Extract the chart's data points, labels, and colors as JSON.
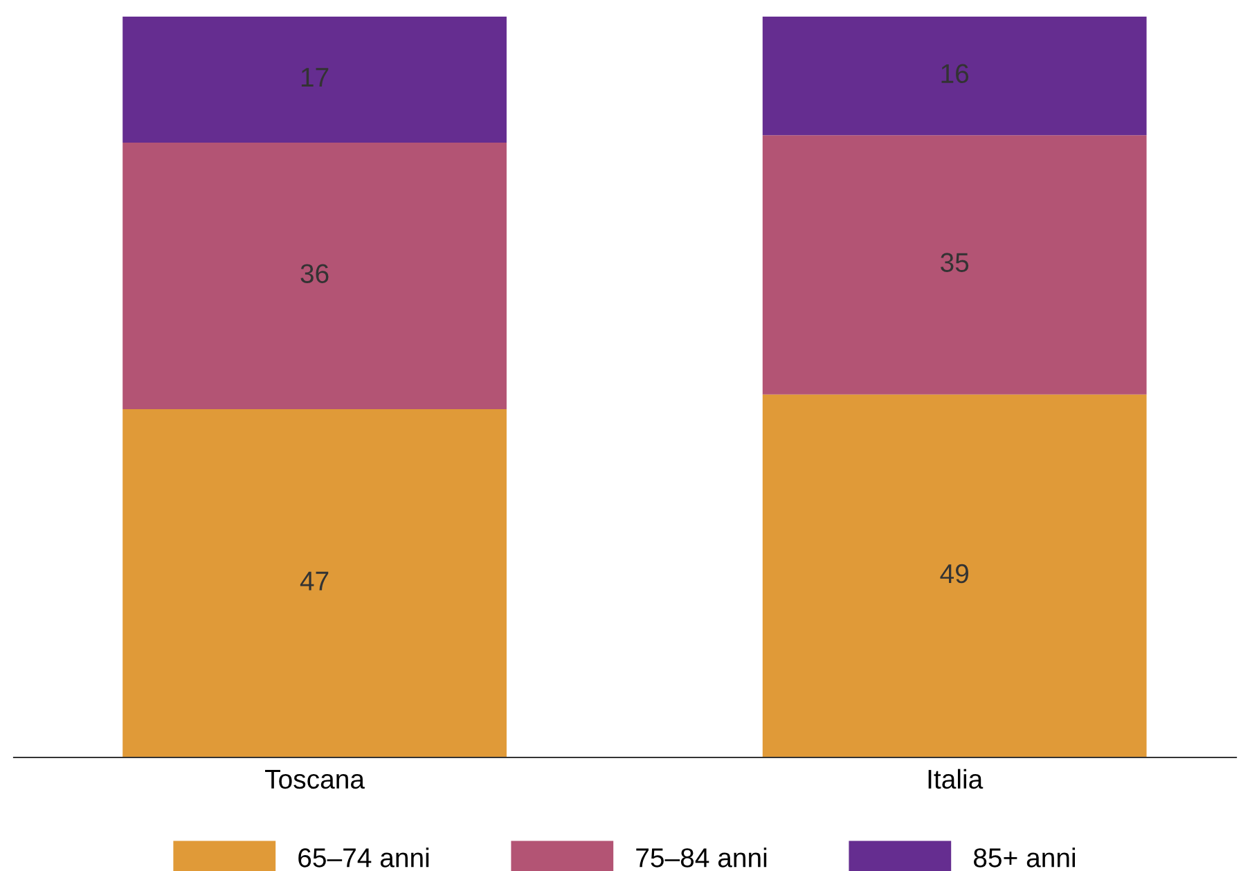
{
  "chart_data": {
    "type": "bar",
    "stacked": true,
    "categories": [
      "Toscana",
      "Italia"
    ],
    "series": [
      {
        "name": "65–74 anni",
        "color": "#e09a38",
        "values": [
          47,
          49
        ]
      },
      {
        "name": "75–84 anni",
        "color": "#b35474",
        "values": [
          36,
          35
        ]
      },
      {
        "name": "85+ anni",
        "color": "#652d90",
        "values": [
          17,
          16
        ]
      }
    ],
    "ylim": [
      0,
      100
    ],
    "data_labels": true,
    "legend": "bottom",
    "grid": false,
    "tick_labels": "x"
  }
}
